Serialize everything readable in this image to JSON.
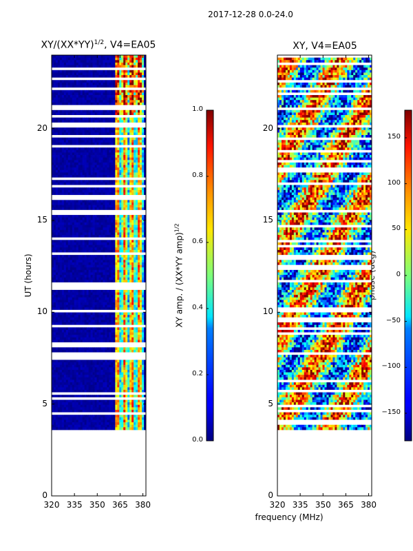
{
  "suptitle": "2017-12-28 0.0-24.0",
  "chart_data": [
    {
      "type": "heatmap",
      "title": "XY/(XX*YY)^1/2, V4=EA05",
      "title_main": "XY/(XX*YY)",
      "title_sup": "1/2",
      "title_suffix": ", V4=EA05",
      "xlabel": "",
      "ylabel": "UT (hours)",
      "xlim": [
        320,
        382
      ],
      "ylim": [
        0,
        24
      ],
      "xticks": [
        320,
        335,
        350,
        365,
        380
      ],
      "yticks": [
        0,
        5,
        10,
        15,
        20
      ],
      "data_coverage_hours": [
        3.6,
        24.0
      ],
      "colorbar": {
        "label": "XY amp. / (XX*YY amp)^1/2",
        "label_main": "XY amp. / (XX*YY amp)",
        "label_sup": "1/2",
        "range": [
          0.0,
          1.0
        ],
        "ticks": [
          "0.0",
          "0.2",
          "0.4",
          "0.6",
          "0.8",
          "1.0"
        ],
        "colormap": "jet"
      }
    },
    {
      "type": "heatmap",
      "title": "XY, V4=EA05",
      "xlabel": "frequency (MHz)",
      "ylabel": "",
      "xlim": [
        320,
        382
      ],
      "ylim": [
        0,
        24
      ],
      "xticks": [
        320,
        335,
        350,
        365,
        380
      ],
      "yticks": [
        0,
        5,
        10,
        15,
        20
      ],
      "data_coverage_hours": [
        3.6,
        24.0
      ],
      "colorbar": {
        "label": "phase (deg)",
        "range": [
          -180,
          180
        ],
        "ticks": [
          "150",
          "100",
          "50",
          "0",
          "−50",
          "−100",
          "−150"
        ],
        "colormap": "jet"
      }
    }
  ]
}
